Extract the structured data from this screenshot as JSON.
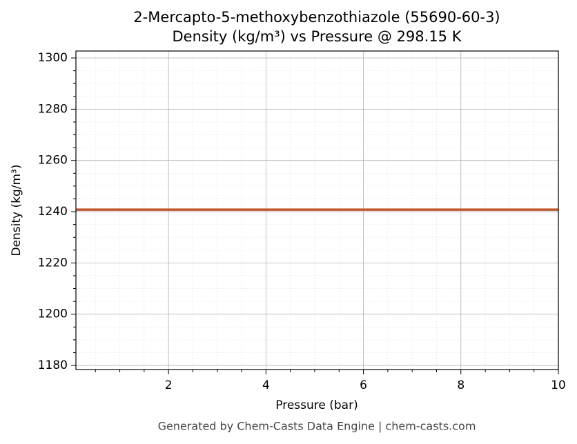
{
  "chart_data": {
    "type": "line",
    "title": "2-Mercapto-5-methoxybenzothiazole (55690-60-3)",
    "subtitle": "Density (kg/m³) vs Pressure @ 298.15 K",
    "x_label": "Pressure (bar)",
    "y_label": "Density (kg/m³)",
    "footer": "Generated by Chem-Casts Data Engine | chem-casts.com",
    "x": [
      0.1,
      10
    ],
    "series": [
      {
        "color": "#c0562b",
        "values": [
          1240.8,
          1240.8
        ]
      }
    ],
    "xlim": [
      0.1,
      10
    ],
    "xticks": [
      2,
      4,
      6,
      8,
      10
    ],
    "xminorticks": [
      0.5,
      1,
      1.5,
      2.5,
      3,
      3.5,
      4.5,
      5,
      5.5,
      6.5,
      7,
      7.5,
      8.5,
      9,
      9.5
    ],
    "ylim": [
      1178.4,
      1302.7
    ],
    "yticks": [
      1180,
      1200,
      1220,
      1240,
      1260,
      1280,
      1300
    ],
    "yminorticks": [
      1185,
      1190,
      1195,
      1205,
      1210,
      1215,
      1225,
      1230,
      1235,
      1245,
      1250,
      1255,
      1265,
      1270,
      1275,
      1285,
      1290,
      1295
    ],
    "grid": true
  }
}
